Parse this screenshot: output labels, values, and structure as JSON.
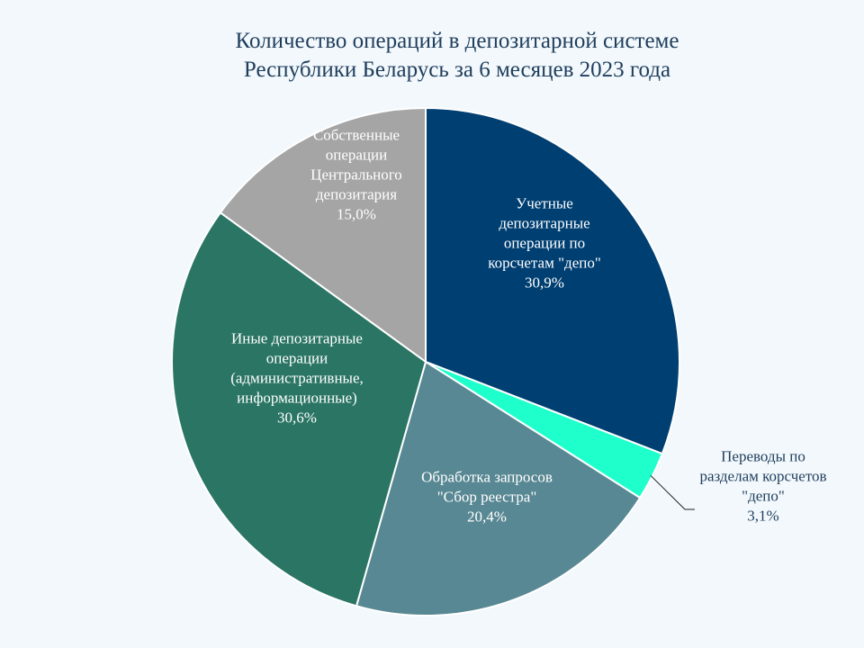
{
  "chart_data": {
    "type": "pie",
    "title_lines": [
      "Количество операций в  депозитарной системе",
      "Республики Беларусь за 6 месяцев 2023 года"
    ],
    "slices": [
      {
        "name": "Учетные депозитарные операции по корсчетам \"депо\"",
        "label_lines": [
          "Учетные",
          "депозитарные",
          "операции по",
          "корсчетам \"депо\""
        ],
        "value": 30.9,
        "value_label": "30,9%",
        "color": "#003f72",
        "text_color": "#ffffff"
      },
      {
        "name": "Переводы по разделам корсчетов \"депо\"",
        "label_lines": [
          "Переводы по",
          "разделам корсчетов",
          "\"депо\""
        ],
        "value": 3.1,
        "value_label": "3,1%",
        "color": "#1fffcc",
        "text_color": "#1f3d5c",
        "outside": true
      },
      {
        "name": "Обработка запросов \"Сбор реестра\"",
        "label_lines": [
          "Обработка запросов",
          "\"Сбор реестра\""
        ],
        "value": 20.4,
        "value_label": "20,4%",
        "color": "#588893",
        "text_color": "#ffffff"
      },
      {
        "name": "Иные депозитарные операции (административные, информационные)",
        "label_lines": [
          "Иные депозитарные",
          "операции",
          "(административные,",
          "информационные)"
        ],
        "value": 30.6,
        "value_label": "30,6%",
        "color": "#2a7564",
        "text_color": "#ffffff"
      },
      {
        "name": "Собственные операции Центрального депозитария",
        "label_lines": [
          "Собственные",
          "операции",
          "Центрального",
          "депозитария"
        ],
        "value": 15.0,
        "value_label": "15,0%",
        "color": "#a5a5a5",
        "text_color": "#ffffff"
      }
    ],
    "start_angle": "12 o'clock",
    "direction": "clockwise",
    "legend": "none"
  }
}
